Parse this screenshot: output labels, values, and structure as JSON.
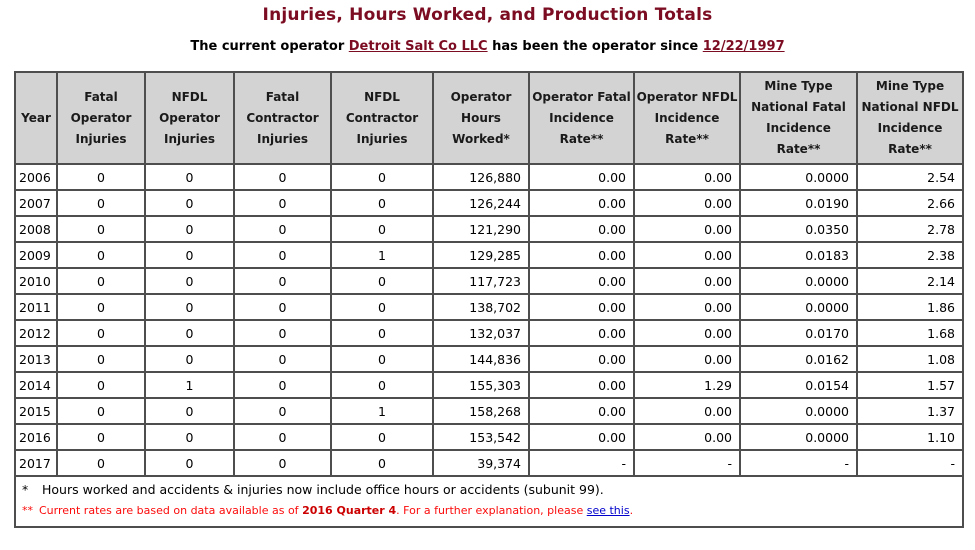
{
  "page": {
    "title": "Injuries, Hours Worked, and Production Totals",
    "subtitle": {
      "prefix": "The current operator ",
      "operator_link": "Detroit Salt Co LLC",
      "middle": " has been the operator since ",
      "date_link": "12/22/1997"
    }
  },
  "colors": {
    "title_maroon": "#7b0c22",
    "note_red": "#fb0b0b",
    "note_bold_red": "#cc0000",
    "see_this_link_blue": "#0000cc",
    "header_bg": "#d3d3d3",
    "table_border": "#4e4e4e"
  },
  "table": {
    "headers": [
      "Year",
      "Fatal\nOperator\nInjuries",
      "NFDL\nOperator\nInjuries",
      "Fatal\nContractor\nInjuries",
      "NFDL\nContractor\nInjuries",
      "Operator\nHours\nWorked*",
      "Operator Fatal\nIncidence\nRate**",
      "Operator NFDL\nIncidence\nRate**",
      "Mine Type\nNational Fatal\nIncidence\nRate**",
      "Mine Type\nNational NFDL\nIncidence\nRate**"
    ],
    "rows": [
      [
        "2006",
        "0",
        "0",
        "0",
        "0",
        "126,880",
        "0.00",
        "0.00",
        "0.0000",
        "2.54"
      ],
      [
        "2007",
        "0",
        "0",
        "0",
        "0",
        "126,244",
        "0.00",
        "0.00",
        "0.0190",
        "2.66"
      ],
      [
        "2008",
        "0",
        "0",
        "0",
        "0",
        "121,290",
        "0.00",
        "0.00",
        "0.0350",
        "2.78"
      ],
      [
        "2009",
        "0",
        "0",
        "0",
        "1",
        "129,285",
        "0.00",
        "0.00",
        "0.0183",
        "2.38"
      ],
      [
        "2010",
        "0",
        "0",
        "0",
        "0",
        "117,723",
        "0.00",
        "0.00",
        "0.0000",
        "2.14"
      ],
      [
        "2011",
        "0",
        "0",
        "0",
        "0",
        "138,702",
        "0.00",
        "0.00",
        "0.0000",
        "1.86"
      ],
      [
        "2012",
        "0",
        "0",
        "0",
        "0",
        "132,037",
        "0.00",
        "0.00",
        "0.0170",
        "1.68"
      ],
      [
        "2013",
        "0",
        "0",
        "0",
        "0",
        "144,836",
        "0.00",
        "0.00",
        "0.0162",
        "1.08"
      ],
      [
        "2014",
        "0",
        "1",
        "0",
        "0",
        "155,303",
        "0.00",
        "1.29",
        "0.0154",
        "1.57"
      ],
      [
        "2015",
        "0",
        "0",
        "0",
        "1",
        "158,268",
        "0.00",
        "0.00",
        "0.0000",
        "1.37"
      ],
      [
        "2016",
        "0",
        "0",
        "0",
        "0",
        "153,542",
        "0.00",
        "0.00",
        "0.0000",
        "1.10"
      ],
      [
        "2017",
        "0",
        "0",
        "0",
        "0",
        "39,374",
        "-",
        "-",
        "-",
        "-"
      ]
    ],
    "notes": {
      "note1": {
        "marker": "*",
        "text": "Hours worked and accidents & injuries now include office hours or accidents (subunit 99)."
      },
      "note2": {
        "marker": "**",
        "prefix": "Current rates are based on data available as of ",
        "bold": "2016 Quarter 4",
        "middle": ". For a further explanation, please ",
        "link": "see this",
        "suffix": "."
      }
    }
  }
}
